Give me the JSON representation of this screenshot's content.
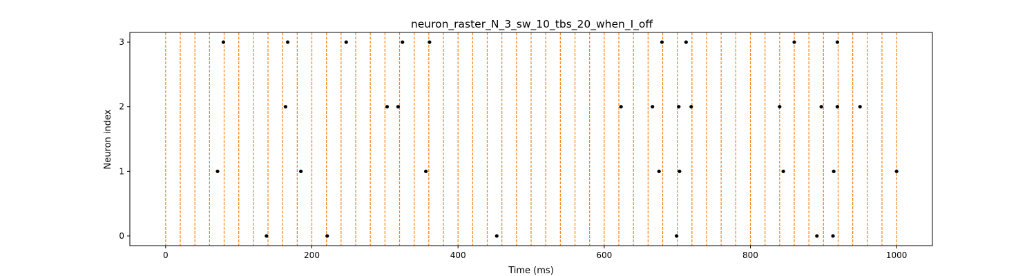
{
  "chart_data": {
    "type": "scatter",
    "title": "neuron_raster_N_3_sw_10_tbs_20_when_I_off",
    "xlabel": "Time (ms)",
    "ylabel": "Neuron index",
    "xlim": [
      -49,
      1049
    ],
    "ylim": [
      -0.15,
      3.15
    ],
    "x_ticks": [
      0,
      200,
      400,
      600,
      800,
      1000
    ],
    "y_ticks": [
      0,
      1,
      2,
      3
    ],
    "grid": false,
    "time_bin_lines": {
      "style": "dashed",
      "color": "#ff7f0e",
      "start": 0,
      "end": 1000,
      "step": 20
    },
    "marker_color": "#000000",
    "spikes": {
      "neuron_0": [
        138,
        221,
        453,
        699,
        891,
        913
      ],
      "neuron_1": [
        71,
        185,
        356,
        675,
        703,
        845,
        914,
        1000
      ],
      "neuron_2": [
        164,
        303,
        318,
        623,
        666,
        702,
        719,
        840,
        897,
        919,
        950
      ],
      "neuron_3": [
        79,
        167,
        247,
        324,
        361,
        679,
        712,
        860,
        919
      ]
    }
  }
}
